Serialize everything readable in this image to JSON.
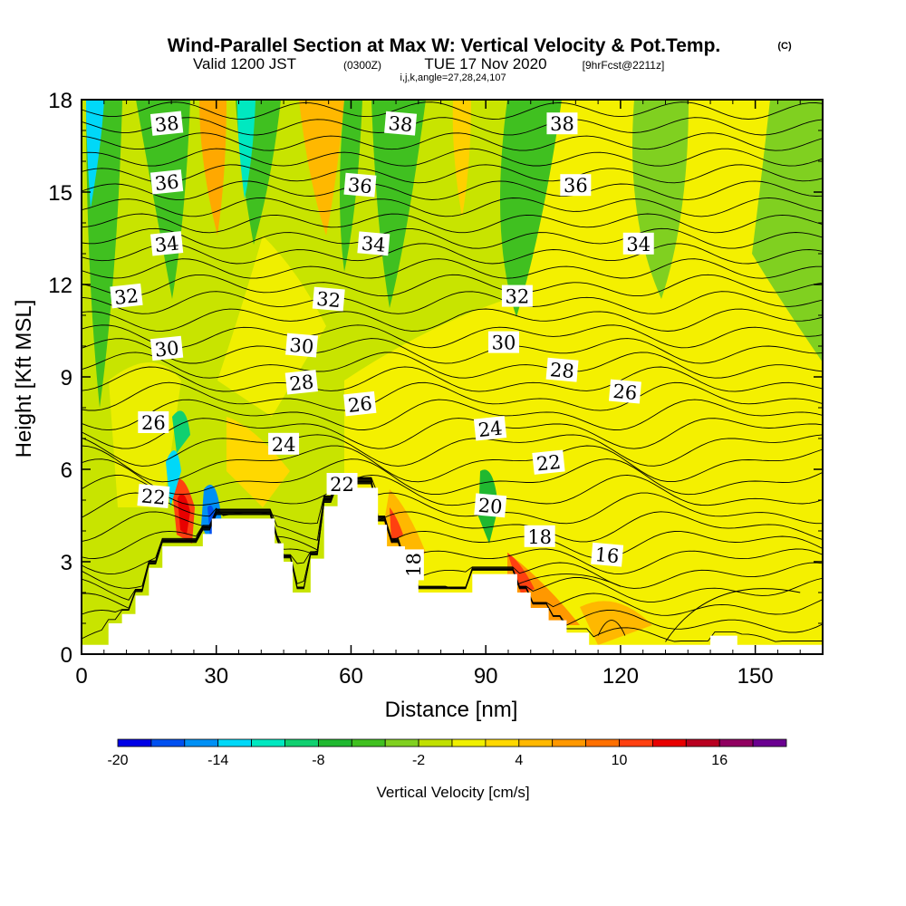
{
  "header": {
    "title": "Wind-Parallel Section at Max W: Vertical Velocity & Pot.Temp.",
    "title_mark": "(C)",
    "valid_prefix": "Valid 1200 JST",
    "valid_utc": "(0300Z)",
    "valid_date": "TUE 17 Nov 2020",
    "forecast": "[9hrFcst@2211z]",
    "indices": "i,j,k,angle=27,28,24,107"
  },
  "chart_data": {
    "type": "contour",
    "xlabel": "Distance [nm]",
    "ylabel": "Height [Kft MSL]",
    "xlim": [
      0,
      165
    ],
    "ylim": [
      0,
      18
    ],
    "xticks": [
      0,
      30,
      60,
      90,
      120,
      150
    ],
    "yticks": [
      0,
      3,
      6,
      9,
      12,
      15,
      18
    ],
    "colorbar": {
      "label": "Vertical Velocity [cm/s]",
      "ticks": [
        "-20",
        "-14",
        "-8",
        "-2",
        "4",
        "10",
        "16"
      ],
      "tick_values": [
        -20,
        -14,
        -8,
        -2,
        4,
        10,
        16
      ],
      "levels": [
        -20,
        -18,
        -16,
        -14,
        -12,
        -10,
        -8,
        -6,
        -4,
        -2,
        0,
        2,
        4,
        6,
        8,
        10,
        12,
        14,
        16,
        18,
        20
      ],
      "colors": [
        "#0000e6",
        "#0050f0",
        "#0090f5",
        "#00d8f8",
        "#00e8c0",
        "#10d070",
        "#20b830",
        "#40c020",
        "#80d020",
        "#c0e000",
        "#f0f000",
        "#ffd800",
        "#ffb800",
        "#ff9800",
        "#ff7000",
        "#ff4010",
        "#e80000",
        "#b80020",
        "#900060",
        "#6a0090"
      ]
    },
    "terrain_kft": [
      [
        0,
        0.3
      ],
      [
        6,
        0.3
      ],
      [
        6,
        1.0
      ],
      [
        9,
        1.0
      ],
      [
        9,
        1.3
      ],
      [
        12,
        1.3
      ],
      [
        12,
        1.9
      ],
      [
        15,
        1.9
      ],
      [
        15,
        2.8
      ],
      [
        18,
        2.8
      ],
      [
        18,
        3.5
      ],
      [
        27,
        3.5
      ],
      [
        27,
        3.9
      ],
      [
        29,
        3.9
      ],
      [
        29,
        4.4
      ],
      [
        43,
        4.4
      ],
      [
        43,
        3.6
      ],
      [
        45,
        3.6
      ],
      [
        45,
        3.0
      ],
      [
        47,
        3.0
      ],
      [
        47,
        2.0
      ],
      [
        51,
        2.0
      ],
      [
        51,
        3.1
      ],
      [
        54,
        3.1
      ],
      [
        54,
        4.8
      ],
      [
        57,
        4.8
      ],
      [
        57,
        5.4
      ],
      [
        66,
        5.4
      ],
      [
        66,
        4.2
      ],
      [
        68,
        4.2
      ],
      [
        68,
        3.5
      ],
      [
        72,
        3.5
      ],
      [
        72,
        2.8
      ],
      [
        75,
        2.8
      ],
      [
        75,
        2.0
      ],
      [
        87,
        2.0
      ],
      [
        87,
        2.6
      ],
      [
        97,
        2.6
      ],
      [
        97,
        2.0
      ],
      [
        100,
        2.0
      ],
      [
        100,
        1.5
      ],
      [
        104,
        1.5
      ],
      [
        104,
        1.1
      ],
      [
        108,
        1.1
      ],
      [
        108,
        0.7
      ],
      [
        113,
        0.7
      ],
      [
        113,
        0.3
      ],
      [
        140,
        0.3
      ],
      [
        140,
        0.6
      ],
      [
        146,
        0.6
      ],
      [
        146,
        0.3
      ],
      [
        165,
        0.3
      ]
    ],
    "isentrope_labels": [
      {
        "text": "38",
        "x": 19,
        "y": 17.2
      },
      {
        "text": "38",
        "x": 71,
        "y": 17.2
      },
      {
        "text": "38",
        "x": 107,
        "y": 17.2
      },
      {
        "text": "36",
        "x": 19,
        "y": 15.3
      },
      {
        "text": "36",
        "x": 62,
        "y": 15.2
      },
      {
        "text": "36",
        "x": 110,
        "y": 15.2
      },
      {
        "text": "34",
        "x": 19,
        "y": 13.3
      },
      {
        "text": "34",
        "x": 65,
        "y": 13.3
      },
      {
        "text": "34",
        "x": 124,
        "y": 13.3
      },
      {
        "text": "32",
        "x": 10,
        "y": 11.6
      },
      {
        "text": "32",
        "x": 55,
        "y": 11.5
      },
      {
        "text": "32",
        "x": 97,
        "y": 11.6
      },
      {
        "text": "30",
        "x": 19,
        "y": 9.9
      },
      {
        "text": "30",
        "x": 49,
        "y": 10.0
      },
      {
        "text": "30",
        "x": 94,
        "y": 10.1
      },
      {
        "text": "28",
        "x": 49,
        "y": 8.8
      },
      {
        "text": "28",
        "x": 107,
        "y": 9.2
      },
      {
        "text": "26",
        "x": 16,
        "y": 7.5
      },
      {
        "text": "26",
        "x": 62,
        "y": 8.1
      },
      {
        "text": "26",
        "x": 121,
        "y": 8.5
      },
      {
        "text": "24",
        "x": 45,
        "y": 6.8
      },
      {
        "text": "24",
        "x": 91,
        "y": 7.3
      },
      {
        "text": "22",
        "x": 16,
        "y": 5.1
      },
      {
        "text": "22",
        "x": 58,
        "y": 5.5
      },
      {
        "text": "22",
        "x": 104,
        "y": 6.2
      },
      {
        "text": "20",
        "x": 91,
        "y": 4.8
      },
      {
        "text": "18",
        "x": 102,
        "y": 3.8
      },
      {
        "text": "18",
        "x": 74,
        "y": 2.9
      },
      {
        "text": "16",
        "x": 117,
        "y": 3.2
      }
    ]
  }
}
